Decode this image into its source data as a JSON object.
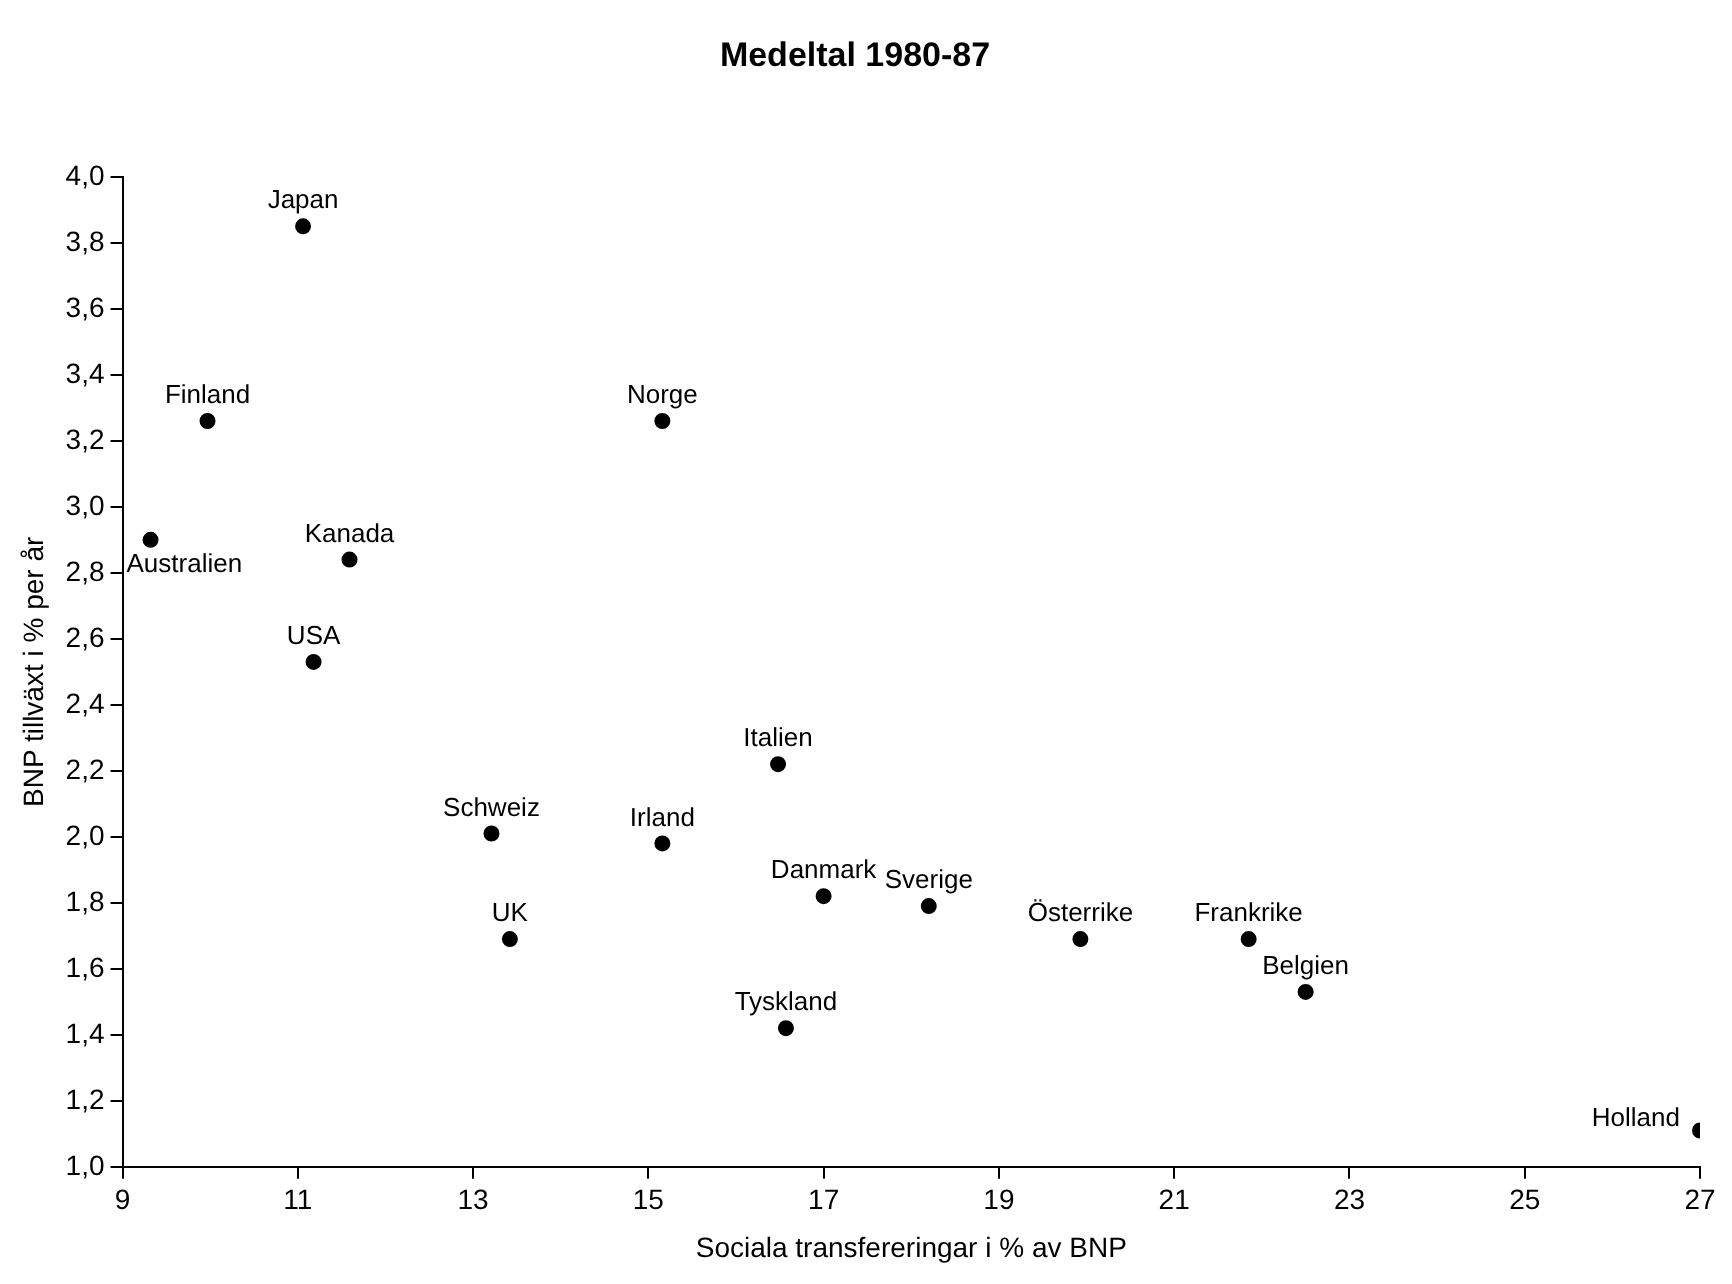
{
  "chart_data": {
    "type": "scatter",
    "title": "Medeltal 1980-87",
    "xlabel": "Sociala transfereringar i % av BNP",
    "ylabel": "BNP tillväxt i % per år",
    "x": [
      11.06,
      9.97,
      9.32,
      11.59,
      11.18,
      15.16,
      16.48,
      13.21,
      15.16,
      13.42,
      17.0,
      18.2,
      19.93,
      21.85,
      22.5,
      16.57,
      27.0
    ],
    "values": [
      3.85,
      3.26,
      2.9,
      2.84,
      2.53,
      3.26,
      2.22,
      2.01,
      1.98,
      1.69,
      1.82,
      1.79,
      1.69,
      1.69,
      1.53,
      1.42,
      1.11
    ],
    "color": "#000000",
    "marker": "circle",
    "xlim": [
      9,
      27
    ],
    "xticks": [
      9,
      11,
      13,
      15,
      17,
      19,
      21,
      23,
      25,
      27
    ],
    "ylim": [
      1.0,
      4.0
    ],
    "yticks": [
      {
        "value": 1.0,
        "label": "1,0"
      },
      {
        "value": 1.2,
        "label": "1,2"
      },
      {
        "value": 1.4,
        "label": "1,4"
      },
      {
        "value": 1.6,
        "label": "1,6"
      },
      {
        "value": 1.8,
        "label": "1,8"
      },
      {
        "value": 2.0,
        "label": "2,0"
      },
      {
        "value": 2.2,
        "label": "2,2"
      },
      {
        "value": 2.4,
        "label": "2,4"
      },
      {
        "value": 2.6,
        "label": "2,6"
      },
      {
        "value": 2.8,
        "label": "2,8"
      },
      {
        "value": 3.0,
        "label": "3,0"
      },
      {
        "value": 3.2,
        "label": "3,2"
      },
      {
        "value": 3.4,
        "label": "3,4"
      },
      {
        "value": 3.6,
        "label": "3,6"
      },
      {
        "value": 3.8,
        "label": "3,8"
      },
      {
        "value": 4.0,
        "label": "4,0"
      }
    ],
    "grid": false,
    "legend": false,
    "annotations": [
      {
        "text": "Japan",
        "x": 11.06,
        "y": 3.85
      },
      {
        "text": "Finland",
        "x": 9.97,
        "y": 3.26
      },
      {
        "text": "Australien",
        "x": 9.32,
        "y": 2.9
      },
      {
        "text": "Kanada",
        "x": 11.59,
        "y": 2.84
      },
      {
        "text": "USA",
        "x": 11.18,
        "y": 2.53
      },
      {
        "text": "Norge",
        "x": 15.16,
        "y": 3.26
      },
      {
        "text": "Italien",
        "x": 16.48,
        "y": 2.22
      },
      {
        "text": "Schweiz",
        "x": 13.21,
        "y": 2.01
      },
      {
        "text": "Irland",
        "x": 15.16,
        "y": 1.98
      },
      {
        "text": "UK",
        "x": 13.42,
        "y": 1.69
      },
      {
        "text": "Danmark",
        "x": 17.0,
        "y": 1.82
      },
      {
        "text": "Sverige",
        "x": 18.2,
        "y": 1.79
      },
      {
        "text": "Österrike",
        "x": 19.93,
        "y": 1.69
      },
      {
        "text": "Frankrike",
        "x": 21.85,
        "y": 1.69
      },
      {
        "text": "Belgien",
        "x": 22.5,
        "y": 1.53
      },
      {
        "text": "Tyskland",
        "x": 16.57,
        "y": 1.42
      },
      {
        "text": "Holland",
        "x": 27.0,
        "y": 1.11
      }
    ]
  }
}
